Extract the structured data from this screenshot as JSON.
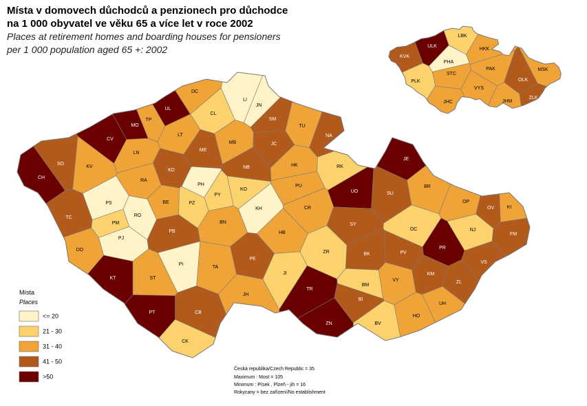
{
  "title": [
    "Místa v domovech důchodců a penzionech pro důchodce",
    "na 1 000 obyvatel ve věku 65 a více let v roce 2002"
  ],
  "subtitle": [
    "Places at retirement homes and boarding houses for pensioners",
    "per 1 000 population aged 65 +: 2002"
  ],
  "legend": {
    "title": "Místa",
    "subtitle": "Places",
    "classes": [
      {
        "label": "<= 20",
        "color": "#fff3c8"
      },
      {
        "label": "21 - 30",
        "color": "#fbd26c"
      },
      {
        "label": "31 - 40",
        "color": "#f0a336"
      },
      {
        "label": "41 - 50",
        "color": "#b15a1c"
      },
      {
        "label": ">50",
        "color": "#6a0000"
      }
    ]
  },
  "districts": [
    {
      "code": "DC",
      "color": "#f0a336"
    },
    {
      "code": "UL",
      "color": "#6a0000"
    },
    {
      "code": "LI",
      "color": "#fff3c8"
    },
    {
      "code": "JN",
      "color": "#fff3c8"
    },
    {
      "code": "CL",
      "color": "#fbd26c"
    },
    {
      "code": "TP",
      "color": "#f0a336"
    },
    {
      "code": "MO",
      "color": "#6a0000"
    },
    {
      "code": "SM",
      "color": "#b15a1c"
    },
    {
      "code": "TU",
      "color": "#f0a336"
    },
    {
      "code": "NA",
      "color": "#b15a1c"
    },
    {
      "code": "CV",
      "color": "#6a0000"
    },
    {
      "code": "LT",
      "color": "#f0a336"
    },
    {
      "code": "ME",
      "color": "#b15a1c"
    },
    {
      "code": "MB",
      "color": "#f0a336"
    },
    {
      "code": "JC",
      "color": "#b15a1c"
    },
    {
      "code": "LN",
      "color": "#f0a336"
    },
    {
      "code": "SO",
      "color": "#b15a1c"
    },
    {
      "code": "KV",
      "color": "#f0a336"
    },
    {
      "code": "KD",
      "color": "#b15a1c"
    },
    {
      "code": "NB",
      "color": "#b15a1c"
    },
    {
      "code": "HK",
      "color": "#f0a336"
    },
    {
      "code": "RK",
      "color": "#fbd26c"
    },
    {
      "code": "JE",
      "color": "#6a0000"
    },
    {
      "code": "CH",
      "color": "#6a0000"
    },
    {
      "code": "RA",
      "color": "#f0a336"
    },
    {
      "code": "PH",
      "color": "#fff3c8"
    },
    {
      "code": "KO",
      "color": "#fbd26c"
    },
    {
      "code": "PY",
      "color": "#fbd26c"
    },
    {
      "code": "PU",
      "color": "#f0a336"
    },
    {
      "code": "UO",
      "color": "#6a0000"
    },
    {
      "code": "SU",
      "color": "#b15a1c"
    },
    {
      "code": "BR",
      "color": "#f0a336"
    },
    {
      "code": "PS",
      "color": "#fff3c8"
    },
    {
      "code": "BE",
      "color": "#f0a336"
    },
    {
      "code": "PZ",
      "color": "#fbd26c"
    },
    {
      "code": "KH",
      "color": "#fff3c8"
    },
    {
      "code": "CR",
      "color": "#f0a336"
    },
    {
      "code": "OP",
      "color": "#f0a336"
    },
    {
      "code": "OV",
      "color": "#b15a1c"
    },
    {
      "code": "KI",
      "color": "#f0a336"
    },
    {
      "code": "TC",
      "color": "#b15a1c"
    },
    {
      "code": "RO",
      "color": "#fff3c8"
    },
    {
      "code": "PM",
      "color": "#fbd26c"
    },
    {
      "code": "BN",
      "color": "#f0a336"
    },
    {
      "code": "SY",
      "color": "#b15a1c"
    },
    {
      "code": "OC",
      "color": "#fbd26c"
    },
    {
      "code": "NJ",
      "color": "#fbd26c"
    },
    {
      "code": "PB",
      "color": "#b15a1c"
    },
    {
      "code": "PJ",
      "color": "#fff3c8"
    },
    {
      "code": "HB",
      "color": "#f0a336"
    },
    {
      "code": "FM",
      "color": "#b15a1c"
    },
    {
      "code": "DO",
      "color": "#f0a336"
    },
    {
      "code": "ZR",
      "color": "#fbd26c"
    },
    {
      "code": "PR",
      "color": "#6a0000"
    },
    {
      "code": "PV",
      "color": "#b15a1c"
    },
    {
      "code": "PE",
      "color": "#b15a1c"
    },
    {
      "code": "BK",
      "color": "#b15a1c"
    },
    {
      "code": "VS",
      "color": "#b15a1c"
    },
    {
      "code": "PI",
      "color": "#fff3c8"
    },
    {
      "code": "TA",
      "color": "#f0a336"
    },
    {
      "code": "JI",
      "color": "#fbd26c"
    },
    {
      "code": "VY",
      "color": "#f0a336"
    },
    {
      "code": "KM",
      "color": "#b15a1c"
    },
    {
      "code": "ST",
      "color": "#f0a336"
    },
    {
      "code": "KT",
      "color": "#6a0000"
    },
    {
      "code": "ZL",
      "color": "#b15a1c"
    },
    {
      "code": "BM",
      "color": "#fbd26c"
    },
    {
      "code": "TR",
      "color": "#6a0000"
    },
    {
      "code": "JH",
      "color": "#f0a336"
    },
    {
      "code": "BI",
      "color": "#b15a1c"
    },
    {
      "code": "UH",
      "color": "#f0a336"
    },
    {
      "code": "CB",
      "color": "#b15a1c"
    },
    {
      "code": "PT",
      "color": "#6a0000"
    },
    {
      "code": "HO",
      "color": "#f0a336"
    },
    {
      "code": "ZN",
      "color": "#6a0000"
    },
    {
      "code": "BV",
      "color": "#fbd26c"
    },
    {
      "code": "CK",
      "color": "#fbd26c"
    }
  ],
  "regions": [
    {
      "code": "LBK",
      "color": "#fbd26c"
    },
    {
      "code": "ULK",
      "color": "#6a0000"
    },
    {
      "code": "KVK",
      "color": "#b15a1c"
    },
    {
      "code": "HKK",
      "color": "#f0a336"
    },
    {
      "code": "PHA",
      "color": "#fff3c8"
    },
    {
      "code": "PAK",
      "color": "#f0a336"
    },
    {
      "code": "STC",
      "color": "#f0a336"
    },
    {
      "code": "MSK",
      "color": "#f0a336"
    },
    {
      "code": "OLK",
      "color": "#b15a1c"
    },
    {
      "code": "PLK",
      "color": "#fbd26c"
    },
    {
      "code": "VYS",
      "color": "#f0a336"
    },
    {
      "code": "ZLK",
      "color": "#b15a1c"
    },
    {
      "code": "JHC",
      "color": "#f0a336"
    },
    {
      "code": "JHM",
      "color": "#f0a336"
    }
  ],
  "notes": [
    "Česká republika/Czech Republic = 35",
    "Maximum : Most = 105",
    "Minimum : Písek , Plzeň - jih = 16",
    "Rokycany = bez zařízení/No establishment"
  ]
}
